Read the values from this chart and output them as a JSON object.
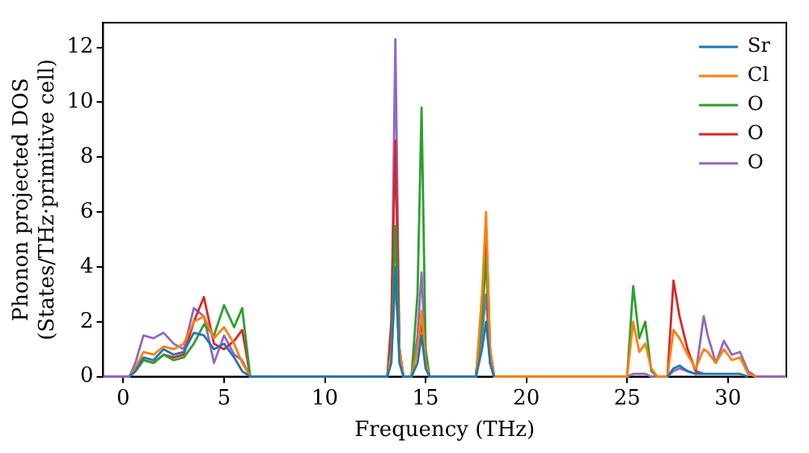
{
  "chart_data": {
    "type": "line",
    "xlabel": "Frequency (THz)",
    "ylabel": "Phonon projected DOS\n(States/THz·primitive cell)",
    "x": [
      -1,
      0.3,
      0.6,
      1.0,
      1.5,
      2.0,
      2.5,
      3.0,
      3.5,
      4.0,
      4.5,
      5.0,
      5.5,
      5.9,
      6.3,
      13.1,
      13.3,
      13.5,
      13.7,
      13.9,
      14.3,
      14.6,
      14.8,
      15.0,
      15.2,
      17.5,
      17.8,
      18.0,
      18.2,
      18.4,
      25.0,
      25.3,
      25.6,
      25.9,
      26.2,
      26.5,
      27.0,
      27.3,
      27.6,
      28.0,
      28.4,
      28.8,
      29.0,
      29.4,
      29.8,
      30.2,
      30.6,
      31.0,
      31.4,
      32.9
    ],
    "series": [
      {
        "name": "Sr",
        "color": "#1f77b4",
        "values": [
          null,
          0,
          0.2,
          0.7,
          0.6,
          1.0,
          0.8,
          0.9,
          1.6,
          1.5,
          1.0,
          1.2,
          0.7,
          0.2,
          0,
          0,
          0.5,
          4.0,
          0.5,
          0,
          0,
          0.5,
          1.5,
          0.3,
          0,
          0,
          1.0,
          2.0,
          0.5,
          0,
          null,
          null,
          null,
          null,
          null,
          null,
          0,
          0.3,
          0.4,
          0.2,
          0.1,
          0.1,
          0.1,
          0.1,
          0.1,
          0.1,
          0.1,
          0,
          null,
          null
        ]
      },
      {
        "name": "Cl",
        "color": "#ff7f0e",
        "values": [
          null,
          0,
          0.3,
          0.9,
          0.8,
          1.1,
          1.0,
          1.2,
          2.0,
          2.2,
          1.4,
          1.8,
          1.2,
          0.5,
          0,
          0,
          0.8,
          3.5,
          1.0,
          0,
          0,
          1.0,
          2.4,
          0.5,
          0,
          0,
          3.0,
          6.0,
          1.0,
          0,
          0,
          2.0,
          0.9,
          1.2,
          0.3,
          0,
          0,
          1.7,
          1.4,
          0.8,
          0.3,
          1.0,
          0.9,
          0.5,
          1.0,
          0.6,
          0.7,
          0.1,
          0,
          null
        ]
      },
      {
        "name": "O",
        "color": "#2ca02c",
        "values": [
          null,
          0,
          0.2,
          0.6,
          0.5,
          0.8,
          0.6,
          0.7,
          1.2,
          1.9,
          1.5,
          2.6,
          1.8,
          2.5,
          0,
          0,
          1.0,
          5.5,
          1.0,
          0,
          0,
          3.0,
          9.8,
          1.0,
          0,
          0,
          2.0,
          4.4,
          0.5,
          0,
          0,
          3.3,
          1.4,
          2.0,
          0.2,
          0,
          null,
          null,
          null,
          null,
          null,
          null,
          null,
          null,
          null,
          null,
          null,
          null,
          null,
          null
        ]
      },
      {
        "name": "O",
        "color": "#d62728",
        "values": [
          null,
          0,
          0.2,
          0.6,
          0.5,
          0.8,
          0.7,
          0.8,
          2.0,
          2.9,
          1.2,
          1.0,
          1.3,
          1.7,
          0,
          0,
          2.0,
          8.6,
          1.0,
          0,
          0,
          1.0,
          2.0,
          0.5,
          0,
          0,
          2.5,
          5.4,
          1.0,
          0,
          null,
          null,
          null,
          null,
          null,
          null,
          0,
          3.5,
          2.2,
          1.0,
          0.2,
          0.1,
          null,
          null,
          null,
          null,
          null,
          null,
          null,
          null
        ]
      },
      {
        "name": "O",
        "color": "#9467bd",
        "values": [
          0,
          0,
          0.5,
          1.5,
          1.4,
          1.6,
          1.2,
          1.0,
          2.5,
          2.2,
          0.5,
          1.5,
          0.8,
          0.6,
          0,
          0,
          1.5,
          12.3,
          1.0,
          0,
          0,
          1.5,
          3.8,
          0.5,
          0,
          0,
          1.5,
          3.0,
          0.5,
          0,
          0,
          0.1,
          0.1,
          0.1,
          0,
          0,
          0,
          0.2,
          0.3,
          0.2,
          0.1,
          2.2,
          1.5,
          0.5,
          1.3,
          0.8,
          0.9,
          0.2,
          0,
          0
        ]
      }
    ],
    "xlim": [
      -1,
      32.9
    ],
    "ylim": [
      0,
      12.9
    ],
    "xticks": [
      0,
      5,
      10,
      15,
      20,
      25,
      30
    ],
    "yticks": [
      0,
      2,
      4,
      6,
      8,
      10,
      12
    ],
    "grid": false,
    "legend": "top right",
    "marker": "none",
    "line_style": "solid"
  }
}
